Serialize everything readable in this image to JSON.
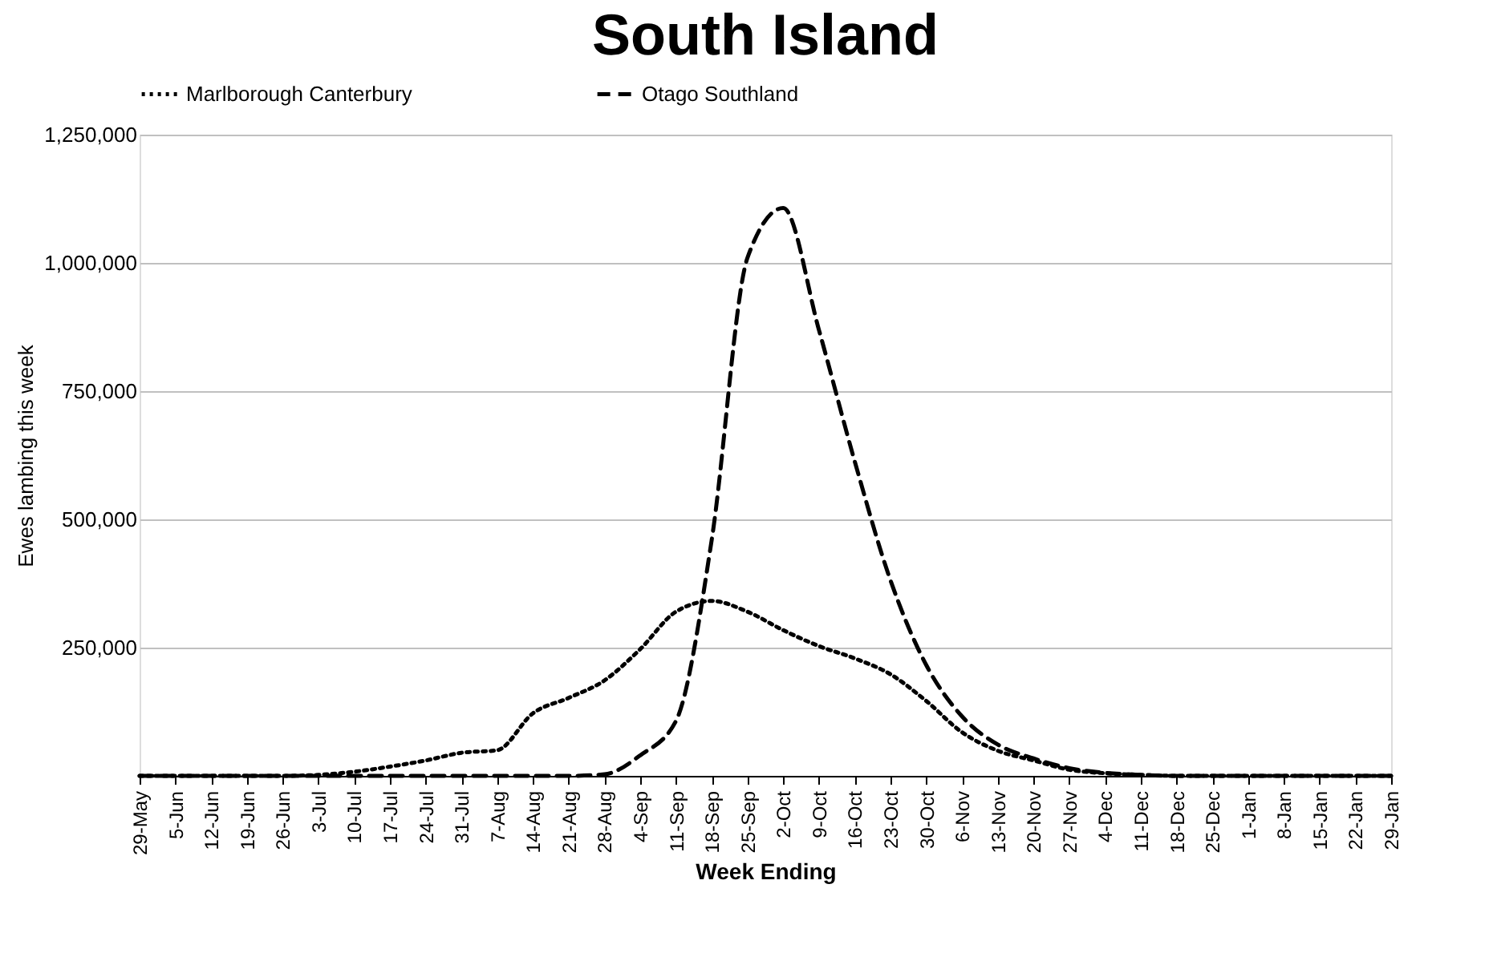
{
  "chart_data": {
    "type": "line",
    "title": "South Island",
    "xlabel": "Week Ending",
    "ylabel": "Ewes lambing this week",
    "categories": [
      "29-May",
      "5-Jun",
      "12-Jun",
      "19-Jun",
      "26-Jun",
      "3-Jul",
      "10-Jul",
      "17-Jul",
      "24-Jul",
      "31-Jul",
      "7-Aug",
      "14-Aug",
      "21-Aug",
      "28-Aug",
      "4-Sep",
      "11-Sep",
      "18-Sep",
      "25-Sep",
      "2-Oct",
      "9-Oct",
      "16-Oct",
      "23-Oct",
      "30-Oct",
      "6-Nov",
      "13-Nov",
      "20-Nov",
      "27-Nov",
      "4-Dec",
      "11-Dec",
      "18-Dec",
      "25-Dec",
      "1-Jan",
      "8-Jan",
      "15-Jan",
      "22-Jan",
      "29-Jan"
    ],
    "series": [
      {
        "name": "Marlborough Canterbury",
        "color": "#000000",
        "line_style": "dotted",
        "values": [
          0,
          0,
          0,
          0,
          0,
          2000,
          8000,
          18000,
          30000,
          45000,
          50000,
          122000,
          152000,
          186000,
          247000,
          320000,
          341000,
          320000,
          284000,
          253000,
          229000,
          198000,
          146000,
          85000,
          49000,
          30000,
          12000,
          5000,
          2000,
          0,
          0,
          0,
          0,
          0,
          0,
          0
        ]
      },
      {
        "name": "Otago Southland",
        "color": "#000000",
        "line_style": "dashed",
        "values": [
          0,
          0,
          0,
          0,
          0,
          0,
          0,
          0,
          0,
          0,
          0,
          0,
          0,
          3000,
          40000,
          107000,
          460000,
          1010000,
          1107000,
          869000,
          613000,
          381000,
          216000,
          116000,
          61000,
          34000,
          15000,
          6000,
          2000,
          0,
          0,
          0,
          0,
          0,
          0,
          0
        ]
      }
    ],
    "ylim": [
      0,
      1250000
    ],
    "yticks": [
      {
        "value": 250000,
        "label": "250,000"
      },
      {
        "value": 500000,
        "label": "500,000"
      },
      {
        "value": 750000,
        "label": "750,000"
      },
      {
        "value": 1000000,
        "label": "1,000,000"
      },
      {
        "value": 1250000,
        "label": "1,250,000"
      }
    ],
    "grid": "y",
    "legend": "top",
    "marker": "none"
  }
}
